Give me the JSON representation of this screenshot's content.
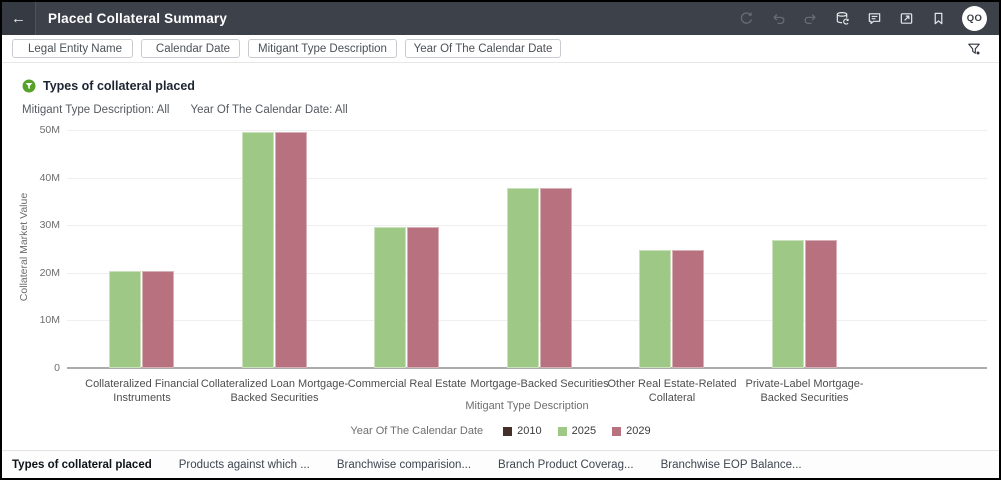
{
  "header": {
    "back_glyph": "←",
    "title": "Placed Collateral Summary",
    "avatar_initials": "QO"
  },
  "filters": {
    "chips": [
      {
        "label": "Legal Entity Name",
        "pinned": true
      },
      {
        "label": "Calendar Date",
        "pinned": true
      },
      {
        "label": "Mitigant Type Description",
        "pinned": false
      },
      {
        "label": "Year Of The Calendar Date",
        "pinned": false
      }
    ]
  },
  "visual": {
    "title": "Types of collateral placed",
    "applied_filters": [
      {
        "label": "Mitigant Type Description",
        "value": "All"
      },
      {
        "label": "Year Of The Calendar Date",
        "value": "All"
      }
    ]
  },
  "chart_data": {
    "type": "bar",
    "title": "Types of collateral placed",
    "categories": [
      "Collateralized Financial Instruments",
      "Collateralized Loan Mortgage-Backed Securities",
      "Commercial Real Estate",
      "Mortgage-Backed Securities",
      "Other Real Estate-Related Collateral",
      "Private-Label Mortgage-Backed Securities"
    ],
    "series": [
      {
        "name": "2010",
        "color": "#453029",
        "values": [
          0,
          0,
          0,
          0,
          0,
          0
        ]
      },
      {
        "name": "2025",
        "color": "#9ec886",
        "values": [
          20.4,
          49.5,
          29.6,
          37.9,
          24.7,
          26.9
        ]
      },
      {
        "name": "2029",
        "color": "#b7717f",
        "values": [
          20.4,
          49.5,
          29.6,
          37.9,
          24.7,
          26.9
        ]
      }
    ],
    "value_unit": "M",
    "xlabel": "Mitigant Type Description",
    "ylabel": "Collateral Market Value",
    "ylim": [
      0,
      50
    ],
    "yticks": [
      0,
      10,
      20,
      30,
      40,
      50
    ],
    "ytick_labels": [
      "0",
      "10M",
      "20M",
      "30M",
      "40M",
      "50M"
    ],
    "legend_title": "Year Of The Calendar Date",
    "legend_position": "bottom",
    "grid": "horizontal"
  },
  "tabs": [
    {
      "label": "Types of collateral placed",
      "active": true
    },
    {
      "label": "Products against which ...",
      "active": false
    },
    {
      "label": "Branchwise comparision...",
      "active": false
    },
    {
      "label": "Branch Product Coverag...",
      "active": false
    },
    {
      "label": "Branchwise EOP Balance...",
      "active": false
    }
  ]
}
